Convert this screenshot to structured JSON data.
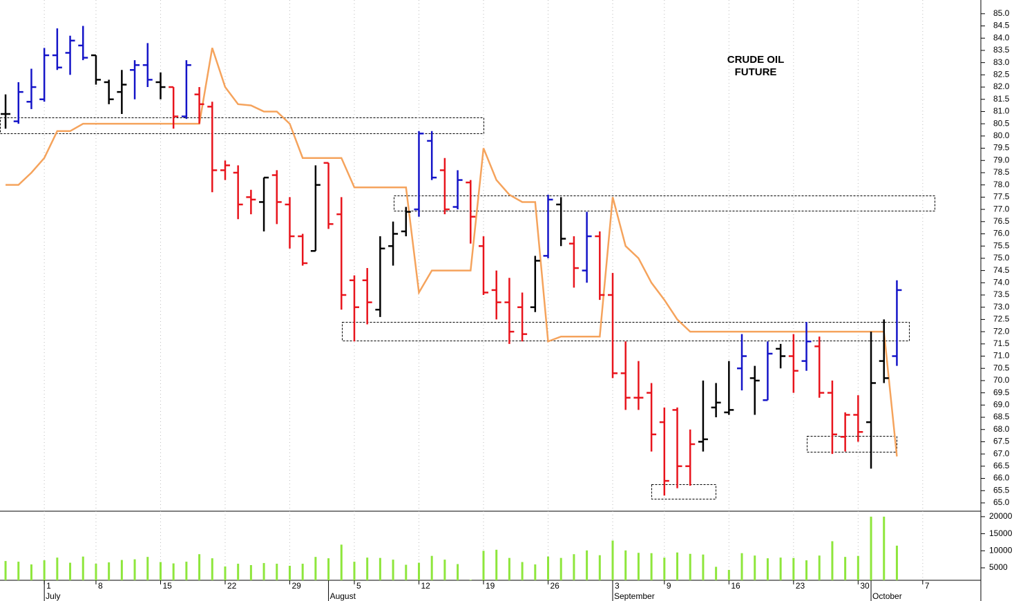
{
  "chart_data": [
    {
      "type": "ohlc",
      "title": "CRUDE OIL FUTURE",
      "open": [
        80.9,
        80.6,
        81.4,
        81.5,
        83.3,
        83.4,
        83.7,
        83.3,
        82.2,
        81.8,
        82.7,
        82.9,
        82.2,
        82.0,
        80.8,
        81.7,
        81.2,
        78.6,
        78.5,
        77.5,
        77.3,
        78.4,
        77.2,
        75.9,
        75.3,
        78.9,
        76.8,
        74.1,
        74.1,
        72.9,
        75.5,
        76.1,
        77.0,
        79.8,
        78.6,
        77.1,
        78.1,
        75.5,
        73.7,
        73.2,
        73.0,
        73.0,
        75.1,
        77.2,
        75.6,
        74.5,
        75.9,
        73.5,
        70.3,
        69.3,
        69.5,
        68.3,
        68.8,
        66.5,
        67.5,
        68.9,
        68.7,
        70.5,
        70.1,
        69.2,
        71.3,
        71.0,
        70.8,
        71.4,
        69.5,
        67.7,
        68.6,
        68.3,
        70.8,
        71.0
      ],
      "high": [
        81.7,
        82.2,
        82.75,
        83.6,
        84.4,
        84.1,
        84.5,
        83.3,
        82.3,
        82.7,
        83.1,
        83.8,
        82.6,
        82.0,
        83.1,
        82.0,
        81.4,
        79.0,
        78.8,
        77.8,
        78.3,
        78.6,
        77.5,
        76.0,
        78.8,
        78.9,
        77.5,
        74.3,
        74.6,
        75.9,
        76.5,
        77.1,
        80.2,
        80.2,
        79.1,
        78.6,
        78.2,
        75.9,
        74.5,
        74.2,
        73.6,
        75.1,
        77.6,
        77.5,
        75.9,
        76.9,
        76.1,
        74.4,
        71.6,
        70.8,
        69.9,
        68.9,
        68.9,
        68.0,
        70.0,
        69.9,
        70.8,
        71.9,
        70.6,
        71.6,
        71.5,
        71.9,
        72.4,
        71.8,
        70.0,
        68.7,
        69.4,
        72.0,
        72.5,
        74.1
      ],
      "low": [
        80.3,
        80.5,
        81.1,
        81.4,
        82.7,
        82.5,
        83.1,
        82.1,
        81.3,
        80.9,
        81.5,
        82.0,
        81.5,
        80.3,
        80.7,
        80.5,
        77.7,
        78.2,
        76.6,
        76.8,
        76.1,
        76.4,
        75.4,
        74.7,
        75.3,
        76.2,
        72.9,
        71.6,
        72.3,
        72.6,
        74.7,
        75.9,
        76.7,
        78.2,
        76.8,
        77.0,
        75.6,
        73.5,
        72.5,
        71.5,
        71.6,
        72.8,
        75.0,
        75.5,
        73.8,
        74.0,
        73.3,
        70.1,
        68.8,
        68.8,
        67.1,
        65.3,
        65.6,
        65.7,
        67.1,
        68.5,
        68.6,
        69.6,
        68.6,
        69.2,
        70.5,
        69.5,
        70.4,
        69.3,
        67.0,
        67.1,
        67.5,
        66.4,
        69.9,
        70.6
      ],
      "close": [
        80.9,
        81.8,
        82.0,
        83.3,
        82.8,
        83.9,
        83.2,
        82.3,
        81.5,
        82.1,
        82.9,
        82.3,
        82.0,
        80.8,
        82.9,
        81.3,
        78.6,
        78.8,
        77.2,
        77.4,
        78.3,
        77.3,
        75.9,
        74.8,
        78.0,
        76.4,
        73.5,
        73.0,
        73.2,
        75.4,
        76.0,
        76.9,
        80.1,
        78.3,
        77.0,
        78.2,
        76.7,
        73.6,
        73.2,
        72.0,
        71.9,
        74.9,
        77.4,
        75.8,
        74.6,
        75.9,
        73.5,
        70.3,
        69.3,
        69.3,
        67.8,
        65.9,
        66.5,
        67.4,
        67.6,
        69.1,
        68.8,
        71.0,
        70.0,
        71.1,
        71.0,
        70.4,
        71.6,
        69.5,
        67.8,
        68.6,
        67.9,
        69.9,
        70.1,
        73.7
      ],
      "colors": [
        "#000000",
        "#1414c8",
        "#1414c8",
        "#1414c8",
        "#1414c8",
        "#1414c8",
        "#1414c8",
        "#000000",
        "#000000",
        "#000000",
        "#1414c8",
        "#1414c8",
        "#000000",
        "#e8141c",
        "#1414c8",
        "#e8141c",
        "#e8141c",
        "#e8141c",
        "#e8141c",
        "#e8141c",
        "#000000",
        "#e8141c",
        "#e8141c",
        "#e8141c",
        "#000000",
        "#e8141c",
        "#e8141c",
        "#e8141c",
        "#e8141c",
        "#000000",
        "#000000",
        "#000000",
        "#1414c8",
        "#1414c8",
        "#e8141c",
        "#1414c8",
        "#e8141c",
        "#e8141c",
        "#e8141c",
        "#e8141c",
        "#e8141c",
        "#000000",
        "#1414c8",
        "#000000",
        "#e8141c",
        "#1414c8",
        "#e8141c",
        "#e8141c",
        "#e8141c",
        "#e8141c",
        "#e8141c",
        "#e8141c",
        "#e8141c",
        "#e8141c",
        "#000000",
        "#000000",
        "#000000",
        "#1414c8",
        "#000000",
        "#1414c8",
        "#000000",
        "#e8141c",
        "#1414c8",
        "#e8141c",
        "#e8141c",
        "#e8141c",
        "#e8141c",
        "#000000",
        "#000000",
        "#1414c8"
      ],
      "lines": [
        {
          "color": "#f5a35c",
          "values": [
            78.0,
            78.0,
            78.5,
            79.1,
            80.2,
            80.2,
            80.5,
            80.5,
            80.5,
            80.5,
            80.5,
            80.5,
            80.5,
            80.5,
            80.5,
            80.5,
            83.6,
            82.0,
            81.3,
            81.25,
            81.0,
            81.0,
            80.5,
            79.1,
            79.1,
            79.1,
            79.1,
            77.9,
            77.9,
            77.9,
            77.9,
            77.9,
            73.6,
            74.5,
            74.5,
            74.5,
            74.5,
            79.5,
            78.2,
            77.6,
            77.3,
            77.3,
            71.6,
            71.8,
            71.8,
            71.8,
            71.8,
            77.5,
            75.5,
            75.0,
            74.0,
            73.3,
            72.5,
            72.0,
            72.0,
            72.0,
            72.0,
            72.0,
            72.0,
            72.0,
            72.0,
            72.0,
            72.0,
            72.0,
            72.0,
            72.0,
            72.0,
            72.0,
            72.0,
            66.9
          ]
        }
      ],
      "ylim": [
        64.66,
        85.56
      ],
      "yticks": [
        {
          "value": 65,
          "label": "65.0"
        },
        {
          "value": 65.5,
          "label": "65.5"
        },
        {
          "value": 66,
          "label": "66.0"
        },
        {
          "value": 66.5,
          "label": "66.5"
        },
        {
          "value": 67,
          "label": "67.0"
        },
        {
          "value": 67.5,
          "label": "67.5"
        },
        {
          "value": 68,
          "label": "68.0"
        },
        {
          "value": 68.5,
          "label": "68.5"
        },
        {
          "value": 69,
          "label": "69.0"
        },
        {
          "value": 69.5,
          "label": "69.5"
        },
        {
          "value": 70,
          "label": "70.0"
        },
        {
          "value": 70.5,
          "label": "70.5"
        },
        {
          "value": 71,
          "label": "71.0"
        },
        {
          "value": 71.5,
          "label": "71.5"
        },
        {
          "value": 72,
          "label": "72.0"
        },
        {
          "value": 72.5,
          "label": "72.5"
        },
        {
          "value": 73,
          "label": "73.0"
        },
        {
          "value": 73.5,
          "label": "73.5"
        },
        {
          "value": 74,
          "label": "74.0"
        },
        {
          "value": 74.5,
          "label": "74.5"
        },
        {
          "value": 75,
          "label": "75.0"
        },
        {
          "value": 75.5,
          "label": "75.5"
        },
        {
          "value": 76,
          "label": "76.0"
        },
        {
          "value": 76.5,
          "label": "76.5"
        },
        {
          "value": 77,
          "label": "77.0"
        },
        {
          "value": 77.5,
          "label": "77.5"
        },
        {
          "value": 78,
          "label": "78.0"
        },
        {
          "value": 78.5,
          "label": "78.5"
        },
        {
          "value": 79,
          "label": "79.0"
        },
        {
          "value": 79.5,
          "label": "79.5"
        },
        {
          "value": 80,
          "label": "80.0"
        },
        {
          "value": 80.5,
          "label": "80.5"
        },
        {
          "value": 81,
          "label": "81.0"
        },
        {
          "value": 81.5,
          "label": "81.5"
        },
        {
          "value": 82,
          "label": "82.0"
        },
        {
          "value": 82.5,
          "label": "82.5"
        },
        {
          "value": 83,
          "label": "83.0"
        },
        {
          "value": 83.5,
          "label": "83.5"
        },
        {
          "value": 84,
          "label": "84.0"
        },
        {
          "value": 84.5,
          "label": "84.5"
        },
        {
          "value": 85,
          "label": "85.0"
        }
      ],
      "xlim": [
        -0.43,
        75.5
      ],
      "xticks": [
        {
          "value": 3,
          "label": "1"
        },
        {
          "value": 7,
          "label": "8"
        },
        {
          "value": 12,
          "label": "15"
        },
        {
          "value": 17,
          "label": "22"
        },
        {
          "value": 22,
          "label": "29"
        },
        {
          "value": 27,
          "label": "5"
        },
        {
          "value": 32,
          "label": "12"
        },
        {
          "value": 37,
          "label": "19"
        },
        {
          "value": 42,
          "label": "26"
        },
        {
          "value": 47,
          "label": "3"
        },
        {
          "value": 51,
          "label": "9"
        },
        {
          "value": 56,
          "label": "16"
        },
        {
          "value": 61,
          "label": "23"
        },
        {
          "value": 66,
          "label": "30"
        },
        {
          "value": 71,
          "label": "7"
        }
      ],
      "month_ticks": [
        {
          "value": 3,
          "label": "July"
        },
        {
          "value": 25,
          "label": "August"
        },
        {
          "value": 47,
          "label": "September"
        },
        {
          "value": 67,
          "label": "October"
        }
      ],
      "grid": true
    },
    {
      "type": "bar",
      "color": "#8ee63c",
      "values": [
        7000,
        6800,
        6000,
        7200,
        8000,
        6500,
        8300,
        6200,
        6600,
        7300,
        7500,
        8200,
        6700,
        6300,
        6800,
        9000,
        7800,
        5400,
        6200,
        5800,
        6400,
        6200,
        5600,
        6200,
        8200,
        7800,
        11800,
        6800,
        8000,
        7900,
        7400,
        5900,
        6500,
        8500,
        7400,
        6100,
        1500,
        10000,
        10300,
        7900,
        6700,
        6000,
        8300,
        7900,
        9000,
        10100,
        8700,
        13000,
        10100,
        9400,
        9300,
        8000,
        9500,
        9100,
        8900,
        5300,
        4400,
        9300,
        8600,
        7800,
        8000,
        7900,
        7200,
        8600,
        12800,
        8200,
        8500,
        20000,
        20000,
        11500
      ],
      "ylim": [
        1350,
        21600
      ],
      "yticks": [
        5000,
        10000,
        15000,
        20000
      ]
    }
  ]
}
